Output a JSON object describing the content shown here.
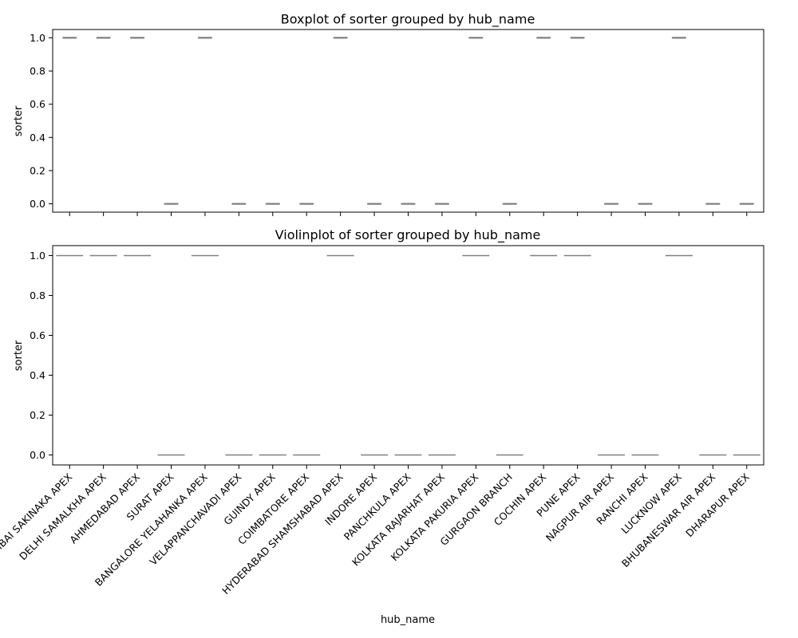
{
  "chart_data": [
    {
      "type": "box",
      "title": "Boxplot of sorter grouped by hub_name",
      "xlabel": "",
      "ylabel": "sorter",
      "ylim": [
        -0.05,
        1.05
      ],
      "yticks": [
        "0.0",
        "0.2",
        "0.4",
        "0.6",
        "0.8",
        "1.0"
      ],
      "ytick_values": [
        0,
        0.2,
        0.4,
        0.6,
        0.8,
        1.0
      ],
      "categories": [
        "MUMBAI SAKINAKA APEX",
        "DELHI SAMALKHA APEX",
        "AHMEDABAD APEX",
        "SURAT APEX",
        "BANGALORE YELAHANKA APEX",
        "VELAPPANCHAVADI APEX",
        "GUINDY APEX",
        "COIMBATORE APEX",
        "HYDERABAD SHAMSHABAD APEX",
        "INDORE APEX",
        "PANCHKULA APEX",
        "KOLKATA RAJARHAT APEX",
        "KOLKATA PAKURIA APEX",
        "GURGAON BRANCH",
        "COCHIN APEX",
        "PUNE APEX",
        "NAGPUR AIR APEX",
        "RANCHI APEX",
        "LUCKNOW APEX",
        "BHUBANESWAR AIR APEX",
        "DHARAPUR APEX"
      ],
      "values": [
        1,
        1,
        1,
        0,
        1,
        0,
        0,
        0,
        1,
        0,
        0,
        0,
        1,
        0,
        1,
        1,
        0,
        0,
        1,
        0,
        0
      ],
      "grid": false
    },
    {
      "type": "violin",
      "title": "Violinplot of sorter grouped by hub_name",
      "xlabel": "hub_name",
      "ylabel": "sorter",
      "ylim": [
        -0.05,
        1.05
      ],
      "yticks": [
        "0.0",
        "0.2",
        "0.4",
        "0.6",
        "0.8",
        "1.0"
      ],
      "ytick_values": [
        0,
        0.2,
        0.4,
        0.6,
        0.8,
        1.0
      ],
      "categories": [
        "MUMBAI SAKINAKA APEX",
        "DELHI SAMALKHA APEX",
        "AHMEDABAD APEX",
        "SURAT APEX",
        "BANGALORE YELAHANKA APEX",
        "VELAPPANCHAVADI APEX",
        "GUINDY APEX",
        "COIMBATORE APEX",
        "HYDERABAD SHAMSHABAD APEX",
        "INDORE APEX",
        "PANCHKULA APEX",
        "KOLKATA RAJARHAT APEX",
        "KOLKATA PAKURIA APEX",
        "GURGAON BRANCH",
        "COCHIN APEX",
        "PUNE APEX",
        "NAGPUR AIR APEX",
        "RANCHI APEX",
        "LUCKNOW APEX",
        "BHUBANESWAR AIR APEX",
        "DHARAPUR APEX"
      ],
      "values": [
        1,
        1,
        1,
        0,
        1,
        0,
        0,
        0,
        1,
        0,
        0,
        0,
        1,
        0,
        1,
        1,
        0,
        0,
        1,
        0,
        0
      ],
      "grid": false
    }
  ],
  "colors": {
    "mark": "#808080",
    "axis": "#000000",
    "background": "#ffffff"
  }
}
